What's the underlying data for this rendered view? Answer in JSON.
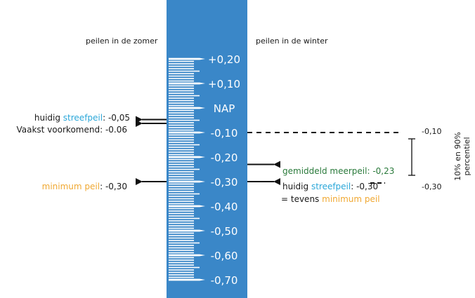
{
  "summer_heading": "peilen in de zomer",
  "winter_heading": "peilen in de winter",
  "gauge": {
    "color": "#3a87c8",
    "marks": [
      {
        "level": 0.2,
        "label": "+0,20"
      },
      {
        "level": 0.1,
        "label": "+0,10"
      },
      {
        "level": 0.0,
        "label": "NAP"
      },
      {
        "level": -0.1,
        "label": "-0,10"
      },
      {
        "level": -0.2,
        "label": "-0,20"
      },
      {
        "level": -0.3,
        "label": "-0,30"
      },
      {
        "level": -0.4,
        "label": "-0,40"
      },
      {
        "level": -0.5,
        "label": "-0,50"
      },
      {
        "level": -0.6,
        "label": "-0,60"
      },
      {
        "level": -0.7,
        "label": "-0,70"
      }
    ]
  },
  "colors": {
    "streefpeil": "#2ba7d9",
    "minimum": "#f0a832",
    "meerpeil": "#2a7a3b",
    "text": "#1a1a1a"
  },
  "summer": {
    "streefpeil": {
      "prefix": "huidig ",
      "term": "streefpeil",
      "suffix": ": -0,05",
      "level": -0.05
    },
    "vaakst": {
      "text": "Vaakst voorkomend: -0.06",
      "level": -0.06
    },
    "minimum": {
      "term": "minimum peil",
      "suffix": ": -0,30",
      "level": -0.3
    }
  },
  "winter": {
    "meerpeil": {
      "text": "gemiddeld meerpeil: -0,23",
      "level": -0.23
    },
    "streefpeil": {
      "prefix": "huidig ",
      "term": "streefpeil",
      "suffix": ": -0,30",
      "level": -0.3
    },
    "tevens": {
      "prefix": "= tevens ",
      "term": "minimum peil"
    },
    "percentile": {
      "upper_label": "-0,10",
      "upper": -0.1,
      "lower_label": "-0,30",
      "lower": -0.3,
      "title_line1": "10% en 90%",
      "title_line2": "percentiel"
    }
  }
}
